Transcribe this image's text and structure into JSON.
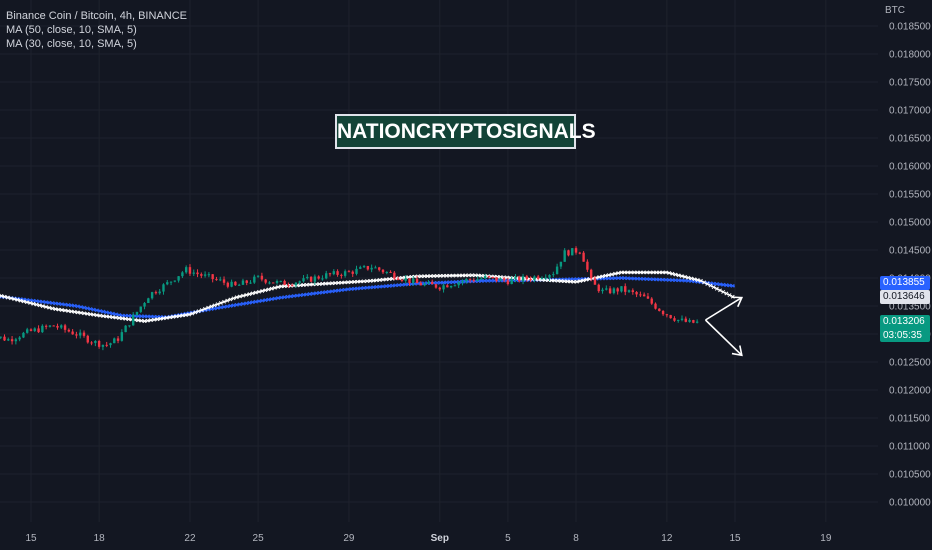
{
  "legend": {
    "symbol": "Binance Coin / Bitcoin, 4h, BINANCE",
    "ma1": "MA (50, close, 10, SMA, 5)",
    "ma2": "MA (30, close, 10, SMA, 5)"
  },
  "watermark": "NATIONCRYPTOSIGNALS",
  "price_tags": {
    "ma_blue": "0.013855",
    "ma_white": "0.013646",
    "last_price": "0.013206",
    "countdown": "03:05:35"
  },
  "colors": {
    "background": "#131722",
    "grid": "#1e222d",
    "up_candle": "#089981",
    "down_candle": "#f23645",
    "ma_blue": "#2962ff",
    "ma_white": "#ffffff",
    "axis_text": "#b2b5be"
  },
  "chart_data": {
    "type": "candlestick",
    "y_unit": "BTC",
    "ylim": [
      0.00975,
      0.0186
    ],
    "y_ticks": [
      "0.018500",
      "0.018000",
      "0.017500",
      "0.017000",
      "0.016500",
      "0.016000",
      "0.015500",
      "0.015000",
      "0.014500",
      "0.014000",
      "0.013500",
      "0.013000",
      "0.012500",
      "0.012000",
      "0.011500",
      "0.011000",
      "0.010500",
      "0.010000"
    ],
    "x_ticks": [
      "15",
      "18",
      "22",
      "25",
      "29",
      "Sep",
      "5",
      "8",
      "12",
      "15",
      "19"
    ],
    "x_tick_days": [
      15,
      18,
      22,
      25,
      29,
      33,
      36,
      39,
      43,
      46,
      50
    ],
    "close_path": [
      {
        "day": 13.0,
        "close": 0.013
      },
      {
        "day": 14.0,
        "close": 0.0129
      },
      {
        "day": 15.0,
        "close": 0.01305
      },
      {
        "day": 16.0,
        "close": 0.01315
      },
      {
        "day": 17.0,
        "close": 0.013
      },
      {
        "day": 17.8,
        "close": 0.01285
      },
      {
        "day": 18.3,
        "close": 0.0128
      },
      {
        "day": 18.8,
        "close": 0.0129
      },
      {
        "day": 19.5,
        "close": 0.0133
      },
      {
        "day": 20.2,
        "close": 0.0137
      },
      {
        "day": 21.0,
        "close": 0.0139
      },
      {
        "day": 21.8,
        "close": 0.01415
      },
      {
        "day": 22.5,
        "close": 0.01405
      },
      {
        "day": 23.3,
        "close": 0.01395
      },
      {
        "day": 24.0,
        "close": 0.01385
      },
      {
        "day": 25.0,
        "close": 0.014
      },
      {
        "day": 26.0,
        "close": 0.0139
      },
      {
        "day": 27.0,
        "close": 0.01395
      },
      {
        "day": 28.0,
        "close": 0.01405
      },
      {
        "day": 29.0,
        "close": 0.0141
      },
      {
        "day": 30.0,
        "close": 0.0142
      },
      {
        "day": 31.0,
        "close": 0.01405
      },
      {
        "day": 32.0,
        "close": 0.0139
      },
      {
        "day": 33.0,
        "close": 0.01385
      },
      {
        "day": 34.0,
        "close": 0.01395
      },
      {
        "day": 35.0,
        "close": 0.014
      },
      {
        "day": 36.0,
        "close": 0.01395
      },
      {
        "day": 37.0,
        "close": 0.014
      },
      {
        "day": 38.0,
        "close": 0.0141
      },
      {
        "day": 38.5,
        "close": 0.01445
      },
      {
        "day": 39.2,
        "close": 0.0145
      },
      {
        "day": 39.7,
        "close": 0.0139
      },
      {
        "day": 40.2,
        "close": 0.01375
      },
      {
        "day": 41.0,
        "close": 0.0138
      },
      {
        "day": 42.0,
        "close": 0.01365
      },
      {
        "day": 42.8,
        "close": 0.0134
      },
      {
        "day": 43.5,
        "close": 0.01325
      },
      {
        "day": 44.0,
        "close": 0.0132
      },
      {
        "day": 44.4,
        "close": 0.013206
      }
    ],
    "series": [
      {
        "name": "MA (50, close, 10, SMA, 5)",
        "color": "#2962ff",
        "points": [
          {
            "day": 13.0,
            "value": 0.0137
          },
          {
            "day": 17.0,
            "value": 0.0135
          },
          {
            "day": 19.0,
            "value": 0.01333
          },
          {
            "day": 21.0,
            "value": 0.0133
          },
          {
            "day": 23.0,
            "value": 0.01345
          },
          {
            "day": 26.0,
            "value": 0.01365
          },
          {
            "day": 29.0,
            "value": 0.0138
          },
          {
            "day": 32.0,
            "value": 0.0139
          },
          {
            "day": 35.0,
            "value": 0.01395
          },
          {
            "day": 38.0,
            "value": 0.01397
          },
          {
            "day": 41.0,
            "value": 0.014
          },
          {
            "day": 44.0,
            "value": 0.01395
          },
          {
            "day": 46.0,
            "value": 0.013855
          }
        ]
      },
      {
        "name": "MA (30, close, 10, SMA, 5)",
        "color": "#ffffff",
        "points": [
          {
            "day": 13.0,
            "value": 0.01375
          },
          {
            "day": 16.0,
            "value": 0.01345
          },
          {
            "day": 18.0,
            "value": 0.01333
          },
          {
            "day": 20.0,
            "value": 0.01323
          },
          {
            "day": 22.0,
            "value": 0.01335
          },
          {
            "day": 24.0,
            "value": 0.01365
          },
          {
            "day": 26.0,
            "value": 0.01385
          },
          {
            "day": 28.0,
            "value": 0.0139
          },
          {
            "day": 30.0,
            "value": 0.01395
          },
          {
            "day": 32.0,
            "value": 0.01403
          },
          {
            "day": 34.5,
            "value": 0.01405
          },
          {
            "day": 37.0,
            "value": 0.01398
          },
          {
            "day": 39.0,
            "value": 0.01393
          },
          {
            "day": 41.0,
            "value": 0.0141
          },
          {
            "day": 43.0,
            "value": 0.0141
          },
          {
            "day": 44.5,
            "value": 0.01395
          },
          {
            "day": 46.0,
            "value": 0.013646
          }
        ]
      }
    ],
    "annotation_arrows": [
      {
        "from": {
          "day": 44.7,
          "value": 0.01325
        },
        "to": {
          "day": 46.3,
          "value": 0.01365
        }
      },
      {
        "from": {
          "day": 44.7,
          "value": 0.01325
        },
        "to": {
          "day": 46.3,
          "value": 0.01262
        }
      }
    ],
    "grid": true
  }
}
